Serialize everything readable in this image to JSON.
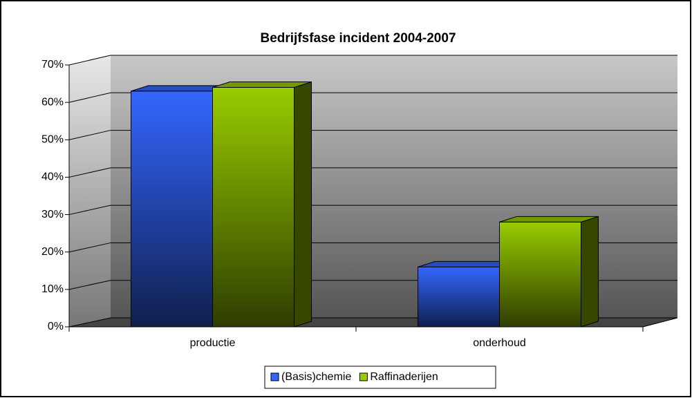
{
  "chart_data": {
    "type": "bar3d",
    "title": "Bedrijfsfase incident 2004-2007",
    "categories": [
      "productie",
      "onderhoud"
    ],
    "series": [
      {
        "name": "(Basis)chemie",
        "color": "#3366ff",
        "values": [
          63,
          16
        ]
      },
      {
        "name": "Raffinaderijen",
        "color": "#99cc00",
        "values": [
          64,
          28
        ]
      }
    ],
    "ylim": [
      0,
      70
    ],
    "yticks": [
      {
        "value": 0,
        "label": "0%"
      },
      {
        "value": 10,
        "label": "10%"
      },
      {
        "value": 20,
        "label": "20%"
      },
      {
        "value": 30,
        "label": "30%"
      },
      {
        "value": 40,
        "label": "40%"
      },
      {
        "value": 50,
        "label": "50%"
      },
      {
        "value": 60,
        "label": "60%"
      },
      {
        "value": 70,
        "label": "70%"
      }
    ],
    "grid": true,
    "legend": "bottom"
  }
}
